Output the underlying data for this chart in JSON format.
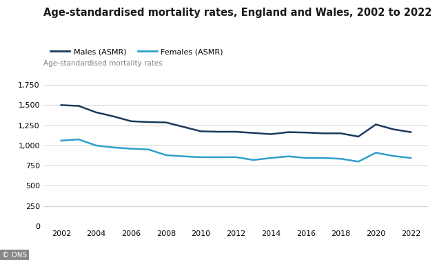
{
  "title": "Age-standardised mortality rates, England and Wales, 2002 to 2022",
  "ylabel": "Age-standardised mortality rates",
  "years": [
    2002,
    2003,
    2004,
    2005,
    2006,
    2007,
    2008,
    2009,
    2010,
    2011,
    2012,
    2013,
    2014,
    2015,
    2016,
    2017,
    2018,
    2019,
    2020,
    2021,
    2022
  ],
  "males": [
    1500,
    1490,
    1410,
    1360,
    1300,
    1290,
    1285,
    1230,
    1175,
    1170,
    1170,
    1155,
    1140,
    1165,
    1160,
    1150,
    1150,
    1110,
    1260,
    1200,
    1165
  ],
  "females": [
    1060,
    1075,
    1000,
    975,
    960,
    950,
    880,
    865,
    855,
    855,
    855,
    820,
    845,
    865,
    845,
    845,
    835,
    800,
    910,
    870,
    845
  ],
  "males_color": "#1a3a5c",
  "females_color": "#2e9fcb",
  "males_label": "Males (ASMR)",
  "females_label": "Females (ASMR)",
  "ylim": [
    0,
    1900
  ],
  "yticks": [
    0,
    250,
    500,
    750,
    1000,
    1250,
    1500,
    1750
  ],
  "xticks": [
    2002,
    2004,
    2006,
    2008,
    2010,
    2012,
    2014,
    2016,
    2018,
    2020,
    2022
  ],
  "background_color": "#ffffff",
  "grid_color": "#d0d0d0",
  "watermark": "© ONS",
  "title_fontsize": 10.5,
  "label_fontsize": 7.5,
  "tick_fontsize": 8,
  "legend_fontsize": 8,
  "line_width": 1.8
}
